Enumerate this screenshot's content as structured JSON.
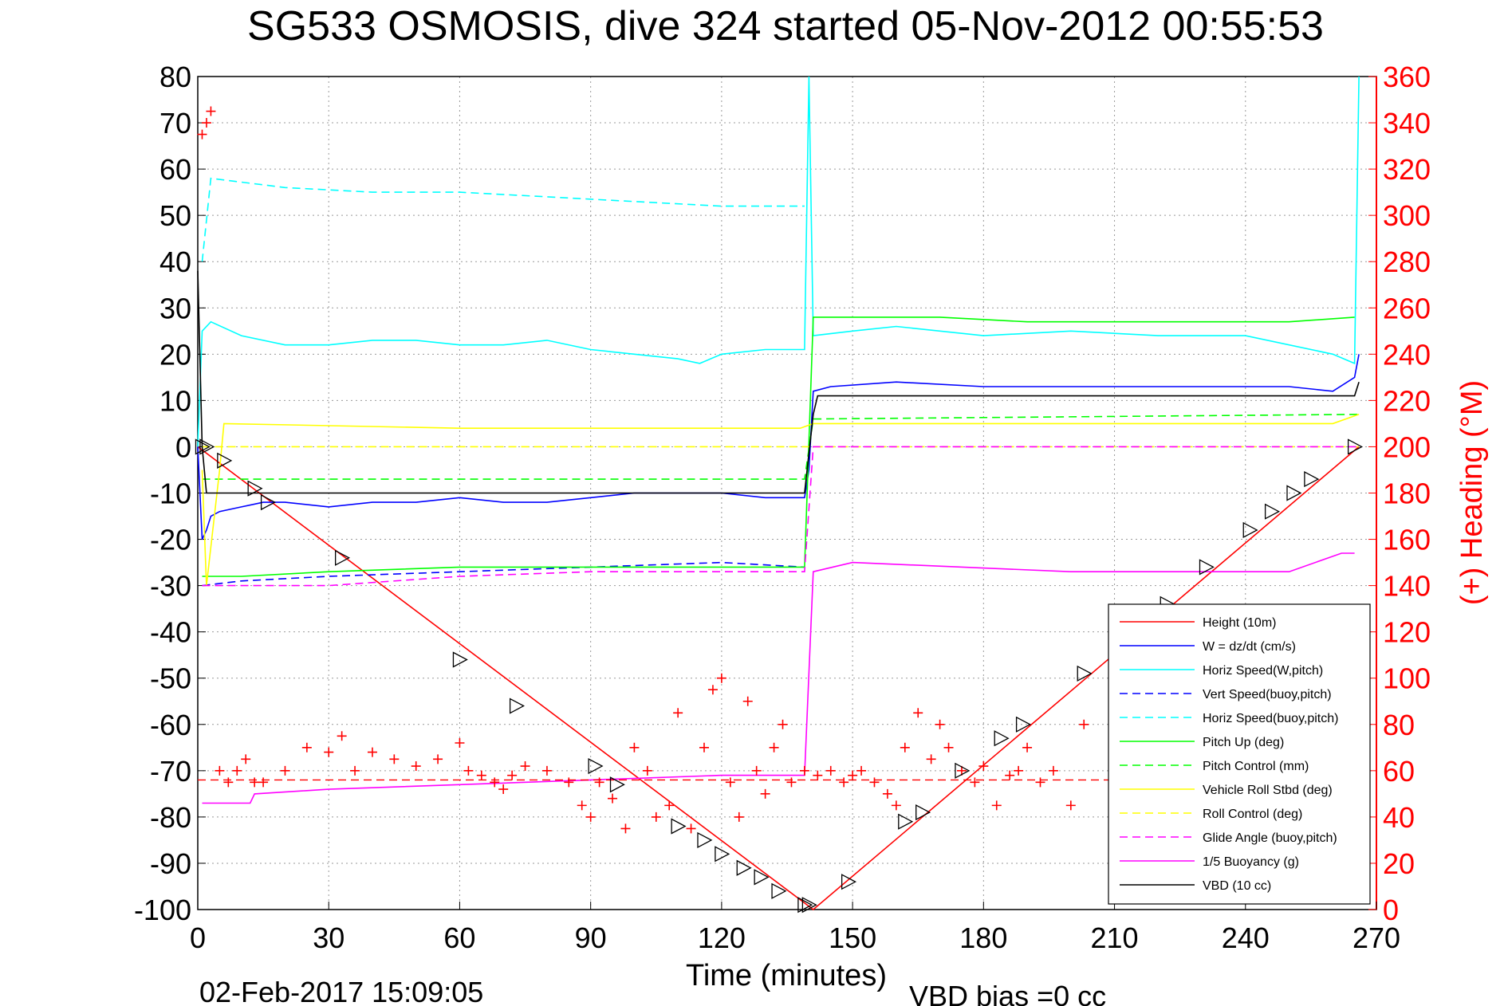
{
  "chart_data": {
    "type": "line",
    "title": "SG533 OSMOSIS, dive 324 started 05-Nov-2012 00:55:53",
    "xlabel": "Time (minutes)",
    "ylabel_right": "(+) Heading (°M)",
    "xlim": [
      0,
      270
    ],
    "ylim": [
      -100,
      80
    ],
    "ylim_right": [
      0,
      360
    ],
    "x_ticks": [
      "0",
      "30",
      "60",
      "90",
      "120",
      "150",
      "180",
      "210",
      "240",
      "270"
    ],
    "y_ticks": [
      "80",
      "70",
      "60",
      "50",
      "40",
      "30",
      "20",
      "10",
      "0",
      "-10",
      "-20",
      "-30",
      "-40",
      "-50",
      "-60",
      "-70",
      "-80",
      "-90",
      "-100"
    ],
    "y_ticks_right": [
      "360",
      "340",
      "320",
      "300",
      "280",
      "260",
      "240",
      "220",
      "200",
      "180",
      "160",
      "140",
      "120",
      "100",
      "80",
      "60",
      "40",
      "20",
      "0"
    ],
    "grid": true,
    "legend_position": "bottom-right",
    "footer_date": "02-Feb-2017 15:09:05",
    "footer_vbd": "VBD bias =0 cc",
    "colors": {
      "height": "#ff0000",
      "w": "#0000ff",
      "horiz_speed": "#00ffff",
      "vert_speed_buoy": "#0000ff",
      "horiz_speed_buoy": "#00ffff",
      "pitch_up": "#00ff00",
      "pitch_control": "#00ff00",
      "roll": "#ffff00",
      "roll_control": "#ffff00",
      "glide_angle": "#ff00ff",
      "buoyancy": "#ff00ff",
      "vbd": "#000000",
      "heading": "#ff0000"
    },
    "series": [
      {
        "name": "Height (10m)",
        "color": "#ff0000",
        "dash": "solid",
        "x": [
          0,
          141,
          266
        ],
        "y": [
          0,
          -100,
          0
        ]
      },
      {
        "name": "W = dz/dt (cm/s)",
        "color": "#0000ff",
        "dash": "solid",
        "x": [
          0,
          1,
          2,
          3,
          5,
          10,
          15,
          20,
          30,
          40,
          50,
          60,
          70,
          80,
          90,
          100,
          110,
          120,
          130,
          139,
          140,
          141,
          145,
          160,
          180,
          200,
          220,
          240,
          250,
          260,
          265,
          266
        ],
        "y": [
          0,
          -20,
          -18,
          -15,
          -14,
          -13,
          -12,
          -12,
          -13,
          -12,
          -12,
          -11,
          -12,
          -12,
          -11,
          -10,
          -10,
          -10,
          -11,
          -11,
          -5,
          12,
          13,
          14,
          13,
          13,
          13,
          13,
          13,
          12,
          15,
          20
        ]
      },
      {
        "name": "Horiz Speed(W,pitch)",
        "color": "#00ffff",
        "dash": "solid",
        "x": [
          0,
          1,
          3,
          10,
          20,
          30,
          40,
          50,
          60,
          70,
          80,
          90,
          100,
          110,
          115,
          120,
          130,
          139,
          140,
          141,
          150,
          160,
          180,
          200,
          220,
          240,
          260,
          265,
          266
        ],
        "y": [
          0,
          25,
          27,
          24,
          22,
          22,
          23,
          23,
          22,
          22,
          23,
          21,
          20,
          19,
          18,
          20,
          21,
          21,
          80,
          24,
          25,
          26,
          24,
          25,
          24,
          24,
          20,
          18,
          80
        ]
      },
      {
        "name": "Vert Speed(buoy,pitch)",
        "color": "#0000ff",
        "dash": "dashed",
        "x": [
          1,
          10,
          30,
          60,
          90,
          120,
          139
        ],
        "y": [
          -30,
          -29,
          -28,
          -27,
          -26,
          -25,
          -26
        ]
      },
      {
        "name": "Horiz Speed(buoy,pitch)",
        "color": "#00ffff",
        "dash": "dashed",
        "x": [
          1,
          3,
          20,
          40,
          60,
          80,
          100,
          120,
          139
        ],
        "y": [
          40,
          58,
          56,
          55,
          55,
          54,
          53,
          52,
          52
        ]
      },
      {
        "name": "Pitch Up (deg)",
        "color": "#00ff00",
        "dash": "solid",
        "x": [
          1,
          10,
          30,
          60,
          90,
          120,
          139,
          141,
          150,
          170,
          190,
          210,
          230,
          250,
          265
        ],
        "y": [
          -28,
          -28,
          -27,
          -26,
          -26,
          -26,
          -26,
          28,
          28,
          28,
          27,
          27,
          27,
          27,
          28
        ]
      },
      {
        "name": "Pitch Control (mm)",
        "color": "#00ff00",
        "dash": "dashed",
        "x": [
          1,
          139,
          141,
          266
        ],
        "y": [
          -7,
          -7,
          6,
          7
        ]
      },
      {
        "name": "Vehicle Roll Stbd (deg)",
        "color": "#ffff00",
        "dash": "solid",
        "x": [
          1,
          2,
          5,
          6,
          60,
          90,
          120,
          138,
          141,
          160,
          200,
          230,
          260,
          266
        ],
        "y": [
          -5,
          -30,
          -5,
          5,
          4,
          4,
          4,
          4,
          5,
          5,
          5,
          5,
          5,
          7
        ]
      },
      {
        "name": "Roll Control (deg)",
        "color": "#ffff00",
        "dash": "dashed",
        "x": [
          1,
          266
        ],
        "y": [
          0,
          0
        ]
      },
      {
        "name": "Glide Angle (buoy,pitch)",
        "color": "#ff00ff",
        "dash": "dashed",
        "x": [
          1,
          30,
          60,
          90,
          120,
          139,
          141,
          266
        ],
        "y": [
          -30,
          -30,
          -28,
          -27,
          -27,
          -27,
          0,
          0
        ]
      },
      {
        "name": "1/5 Buoyancy (g)",
        "color": "#ff00ff",
        "dash": "solid",
        "x": [
          1,
          2,
          12,
          13,
          30,
          60,
          90,
          120,
          139,
          141,
          150,
          200,
          250,
          262,
          265
        ],
        "y": [
          -77,
          -77,
          -77,
          -75,
          -74,
          -73,
          -72,
          -71,
          -71,
          -27,
          -25,
          -27,
          -27,
          -23,
          -23
        ]
      },
      {
        "name": "VBD (10 cc)",
        "color": "#000000",
        "dash": "solid",
        "x": [
          0,
          1,
          2,
          139,
          141,
          142,
          200,
          265,
          266
        ],
        "y": [
          38,
          0,
          -10,
          -10,
          7,
          11,
          11,
          11,
          14
        ]
      }
    ],
    "heading_points": {
      "name": "Heading",
      "x": [
        1,
        2,
        3,
        5,
        7,
        9,
        11,
        13,
        15,
        20,
        25,
        30,
        33,
        36,
        40,
        45,
        50,
        55,
        60,
        62,
        65,
        68,
        70,
        72,
        75,
        80,
        85,
        88,
        90,
        92,
        95,
        98,
        100,
        103,
        105,
        108,
        110,
        113,
        116,
        118,
        120,
        122,
        124,
        126,
        128,
        130,
        132,
        134,
        136,
        139,
        142,
        145,
        148,
        150,
        152,
        155,
        158,
        160,
        162,
        165,
        168,
        170,
        172,
        175,
        178,
        180,
        183,
        186,
        188,
        190,
        193,
        196,
        200,
        203
      ],
      "y": [
        335,
        340,
        345,
        60,
        55,
        60,
        65,
        55,
        55,
        60,
        70,
        68,
        75,
        60,
        68,
        65,
        62,
        65,
        72,
        60,
        58,
        55,
        52,
        58,
        62,
        60,
        55,
        45,
        40,
        55,
        48,
        35,
        70,
        60,
        40,
        45,
        85,
        35,
        70,
        95,
        100,
        55,
        40,
        90,
        60,
        50,
        70,
        80,
        55,
        60,
        58,
        60,
        55,
        58,
        60,
        55,
        50,
        45,
        70,
        85,
        65,
        80,
        70,
        60,
        55,
        62,
        45,
        58,
        60,
        70,
        55,
        60,
        45,
        80
      ]
    },
    "triangle_marks": {
      "x": [
        1,
        2,
        6,
        13,
        16,
        33,
        60,
        73,
        91,
        96,
        110,
        116,
        120,
        125,
        129,
        133,
        139,
        140,
        149,
        162,
        166,
        175,
        184,
        189,
        203,
        222,
        231,
        241,
        246,
        251,
        255,
        265
      ],
      "y": [
        0,
        0,
        -3,
        -9,
        -12,
        -24,
        -46,
        -56,
        -69,
        -73,
        -82,
        -85,
        -88,
        -91,
        -93,
        -96,
        -99,
        -99,
        -94,
        -81,
        -79,
        -70,
        -63,
        -60,
        -49,
        -34,
        -26,
        -18,
        -14,
        -10,
        -7,
        0
      ]
    },
    "heading_reference": 56
  }
}
